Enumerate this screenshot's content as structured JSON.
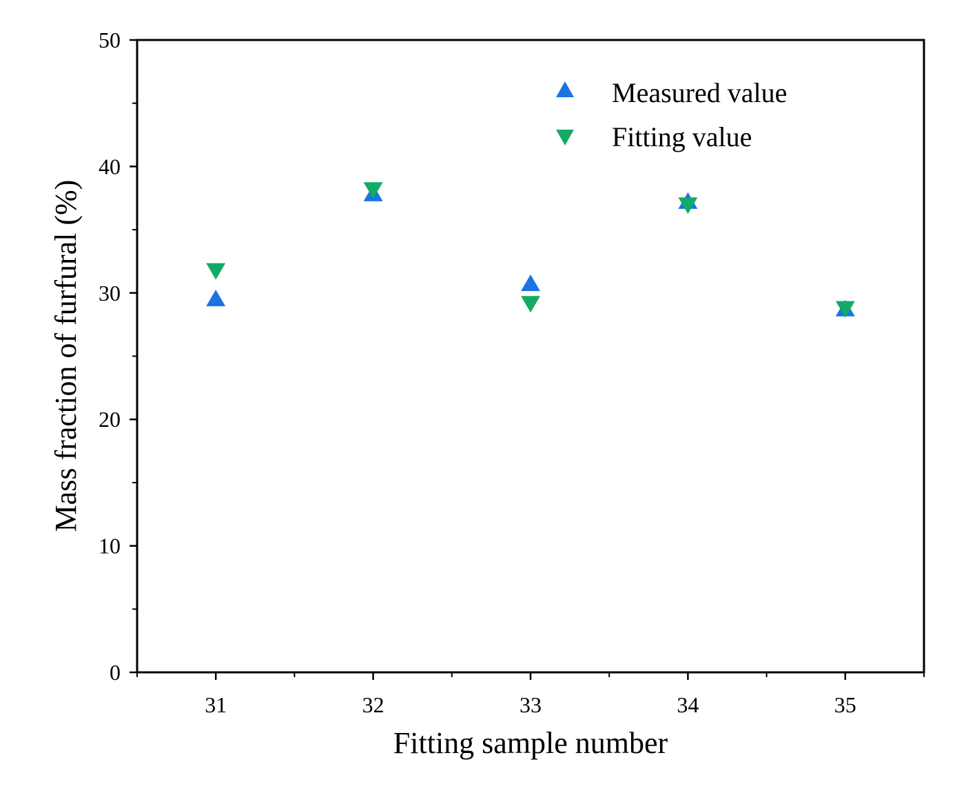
{
  "chart_data": {
    "type": "scatter",
    "title": "",
    "xlabel": "Fitting sample number",
    "ylabel": "Mass fraction of furfural (%)",
    "x": [
      31,
      32,
      33,
      34,
      35
    ],
    "xlim": [
      30.5,
      35.5
    ],
    "ylim": [
      0,
      50
    ],
    "x_ticks": [
      31,
      32,
      33,
      34,
      35
    ],
    "y_ticks": [
      0,
      10,
      20,
      30,
      40,
      50
    ],
    "x_tick_labels": [
      "31",
      "32",
      "33",
      "34",
      "35"
    ],
    "y_tick_labels": [
      "0",
      "10",
      "20",
      "30",
      "40",
      "50"
    ],
    "grid": false,
    "legend_position": "top-right",
    "series": [
      {
        "name": "Measured value",
        "marker": "triangle-up",
        "color": "#1a74e2",
        "values": [
          29.6,
          37.9,
          30.8,
          37.3,
          28.8
        ]
      },
      {
        "name": "Fitting value",
        "marker": "triangle-down",
        "color": "#12ab66",
        "values": [
          31.7,
          38.1,
          29.1,
          36.9,
          28.7
        ]
      }
    ]
  }
}
